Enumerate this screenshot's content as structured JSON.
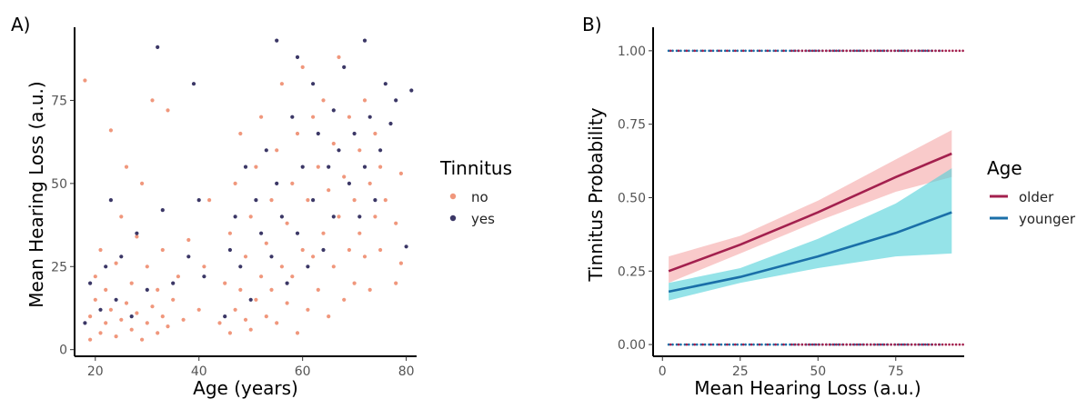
{
  "chart_data": [
    {
      "panel": "A)",
      "type": "scatter",
      "xlabel": "Age (years)",
      "ylabel": "Mean Hearing Loss (a.u.)",
      "xlim": [
        16,
        82
      ],
      "ylim": [
        -2,
        97
      ],
      "xticks": [
        20,
        40,
        60,
        80
      ],
      "yticks": [
        0,
        25,
        50,
        75
      ],
      "legend": {
        "title": "Tinnitus",
        "placement": "right",
        "entries": [
          {
            "label": "no",
            "color": "#f0977c"
          },
          {
            "label": "yes",
            "color": "#3b3766"
          }
        ]
      },
      "series": [
        {
          "name": "no",
          "color": "#f0977c",
          "points": [
            [
              18,
              81
            ],
            [
              19,
              3
            ],
            [
              19,
              10
            ],
            [
              20,
              15
            ],
            [
              20,
              22
            ],
            [
              21,
              5
            ],
            [
              21,
              30
            ],
            [
              22,
              8
            ],
            [
              22,
              18
            ],
            [
              23,
              12
            ],
            [
              23,
              66
            ],
            [
              24,
              4
            ],
            [
              24,
              26
            ],
            [
              25,
              9
            ],
            [
              25,
              40
            ],
            [
              26,
              14
            ],
            [
              26,
              55
            ],
            [
              27,
              6
            ],
            [
              27,
              20
            ],
            [
              28,
              11
            ],
            [
              28,
              34
            ],
            [
              29,
              3
            ],
            [
              29,
              50
            ],
            [
              30,
              8
            ],
            [
              30,
              25
            ],
            [
              31,
              13
            ],
            [
              31,
              75
            ],
            [
              32,
              5
            ],
            [
              32,
              18
            ],
            [
              33,
              10
            ],
            [
              33,
              30
            ],
            [
              34,
              72
            ],
            [
              34,
              7
            ],
            [
              35,
              15
            ],
            [
              36,
              22
            ],
            [
              37,
              9
            ],
            [
              38,
              33
            ],
            [
              40,
              12
            ],
            [
              41,
              25
            ],
            [
              42,
              45
            ],
            [
              44,
              8
            ],
            [
              45,
              20
            ],
            [
              46,
              5
            ],
            [
              46,
              35
            ],
            [
              47,
              12
            ],
            [
              47,
              50
            ],
            [
              48,
              18
            ],
            [
              48,
              65
            ],
            [
              49,
              9
            ],
            [
              49,
              28
            ],
            [
              50,
              40
            ],
            [
              50,
              6
            ],
            [
              51,
              15
            ],
            [
              51,
              55
            ],
            [
              52,
              22
            ],
            [
              52,
              70
            ],
            [
              53,
              10
            ],
            [
              53,
              32
            ],
            [
              54,
              45
            ],
            [
              54,
              18
            ],
            [
              55,
              60
            ],
            [
              55,
              8
            ],
            [
              56,
              25
            ],
            [
              56,
              80
            ],
            [
              57,
              14
            ],
            [
              57,
              38
            ],
            [
              58,
              50
            ],
            [
              58,
              22
            ],
            [
              59,
              65
            ],
            [
              59,
              5
            ],
            [
              60,
              30
            ],
            [
              60,
              85
            ],
            [
              61,
              12
            ],
            [
              61,
              45
            ],
            [
              62,
              28
            ],
            [
              62,
              70
            ],
            [
              63,
              18
            ],
            [
              63,
              55
            ],
            [
              64,
              35
            ],
            [
              64,
              75
            ],
            [
              65,
              10
            ],
            [
              65,
              48
            ],
            [
              66,
              25
            ],
            [
              66,
              62
            ],
            [
              67,
              40
            ],
            [
              67,
              88
            ],
            [
              68,
              15
            ],
            [
              68,
              52
            ],
            [
              69,
              30
            ],
            [
              69,
              70
            ],
            [
              70,
              20
            ],
            [
              70,
              45
            ],
            [
              71,
              60
            ],
            [
              71,
              35
            ],
            [
              72,
              28
            ],
            [
              72,
              75
            ],
            [
              73,
              50
            ],
            [
              73,
              18
            ],
            [
              74,
              40
            ],
            [
              74,
              65
            ],
            [
              75,
              30
            ],
            [
              75,
              55
            ],
            [
              76,
              45
            ],
            [
              78,
              20
            ],
            [
              78,
              38
            ],
            [
              79,
              26
            ],
            [
              79,
              53
            ]
          ]
        },
        {
          "name": "yes",
          "color": "#3b3766",
          "points": [
            [
              18,
              8
            ],
            [
              19,
              20
            ],
            [
              21,
              12
            ],
            [
              22,
              25
            ],
            [
              23,
              45
            ],
            [
              24,
              15
            ],
            [
              25,
              28
            ],
            [
              27,
              10
            ],
            [
              28,
              35
            ],
            [
              30,
              18
            ],
            [
              32,
              91
            ],
            [
              33,
              42
            ],
            [
              35,
              20
            ],
            [
              38,
              28
            ],
            [
              39,
              80
            ],
            [
              40,
              45
            ],
            [
              41,
              22
            ],
            [
              45,
              10
            ],
            [
              46,
              30
            ],
            [
              47,
              40
            ],
            [
              48,
              25
            ],
            [
              49,
              55
            ],
            [
              50,
              15
            ],
            [
              51,
              45
            ],
            [
              52,
              35
            ],
            [
              53,
              60
            ],
            [
              54,
              28
            ],
            [
              55,
              50
            ],
            [
              55,
              93
            ],
            [
              56,
              40
            ],
            [
              57,
              20
            ],
            [
              58,
              70
            ],
            [
              59,
              35
            ],
            [
              59,
              88
            ],
            [
              60,
              55
            ],
            [
              61,
              25
            ],
            [
              62,
              80
            ],
            [
              62,
              45
            ],
            [
              63,
              65
            ],
            [
              64,
              30
            ],
            [
              65,
              55
            ],
            [
              66,
              72
            ],
            [
              66,
              40
            ],
            [
              67,
              60
            ],
            [
              68,
              85
            ],
            [
              69,
              50
            ],
            [
              70,
              65
            ],
            [
              71,
              40
            ],
            [
              72,
              93
            ],
            [
              72,
              55
            ],
            [
              73,
              70
            ],
            [
              74,
              45
            ],
            [
              75,
              60
            ],
            [
              76,
              80
            ],
            [
              77,
              68
            ],
            [
              78,
              75
            ],
            [
              80,
              31
            ],
            [
              81,
              78
            ]
          ]
        }
      ]
    },
    {
      "panel": "B)",
      "type": "line",
      "xlabel": "Mean Hearing Loss (a.u.)",
      "ylabel": "Tinnitus Probability",
      "xlim": [
        -3,
        97
      ],
      "ylim": [
        -0.04,
        1.08
      ],
      "xticks": [
        0,
        25,
        50,
        75
      ],
      "yticks": [
        0.0,
        0.25,
        0.5,
        0.75,
        1.0
      ],
      "ytick_labels": [
        "0.00",
        "0.25",
        "0.50",
        "0.75",
        "1.00"
      ],
      "legend": {
        "title": "Age",
        "placement": "right",
        "entries": [
          {
            "label": "older",
            "color": "#a3204e"
          },
          {
            "label": "younger",
            "color": "#1a6fa8"
          }
        ]
      },
      "series": [
        {
          "name": "older",
          "color": "#a3204e",
          "band_color": "#f5a6a6",
          "x": [
            2,
            25,
            50,
            75,
            93
          ],
          "y": [
            0.25,
            0.34,
            0.45,
            0.57,
            0.65
          ],
          "lower": [
            0.21,
            0.31,
            0.42,
            0.52,
            0.57
          ],
          "upper": [
            0.3,
            0.37,
            0.49,
            0.63,
            0.73
          ]
        },
        {
          "name": "younger",
          "color": "#1a6fa8",
          "band_color": "#4fd0d8",
          "x": [
            2,
            25,
            50,
            75,
            93
          ],
          "y": [
            0.18,
            0.23,
            0.3,
            0.38,
            0.45
          ],
          "lower": [
            0.15,
            0.21,
            0.26,
            0.3,
            0.31
          ],
          "upper": [
            0.21,
            0.26,
            0.36,
            0.48,
            0.6
          ]
        }
      ],
      "rug": {
        "y_values": [
          0,
          1
        ],
        "older_color": "#a3204e",
        "younger_color": "#1a6fa8",
        "older_x_range": [
          2,
          97
        ],
        "younger_x_range": [
          2,
          90
        ]
      }
    }
  ]
}
